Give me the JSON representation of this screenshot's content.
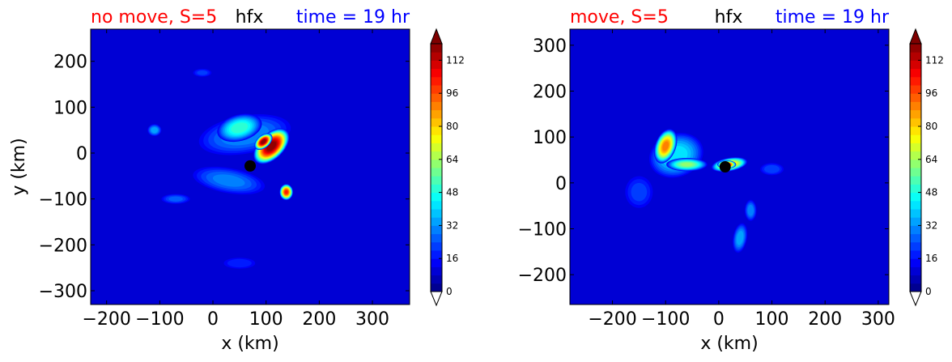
{
  "chart_data": [
    {
      "type": "heatmap",
      "title_left": "no move, S=5",
      "title_center": "hfx",
      "title_right": "time = 19 hr",
      "xlabel": "x (km)",
      "ylabel": "y (km)",
      "xlim": [
        -230,
        370
      ],
      "ylim": [
        -330,
        270
      ],
      "xticks": [
        -200,
        -100,
        0,
        100,
        200,
        300
      ],
      "yticks": [
        -300,
        -200,
        -100,
        0,
        100,
        200
      ],
      "marker": {
        "x": 70,
        "y": -28
      },
      "colorbar": {
        "min": 0,
        "max": 120,
        "step": 4,
        "ticks": [
          0,
          16,
          32,
          48,
          64,
          80,
          96,
          112
        ],
        "extend": "both"
      },
      "background_level": 8,
      "features": [
        {
          "x": 0,
          "y": -40,
          "rx": 260,
          "ry": 240,
          "rot": 0,
          "peak": 10
        },
        {
          "x": 60,
          "y": 40,
          "rx": 95,
          "ry": 45,
          "rot": -10,
          "peak": 30
        },
        {
          "x": 50,
          "y": 55,
          "rx": 45,
          "ry": 30,
          "rot": -15,
          "peak": 50
        },
        {
          "x": 110,
          "y": 15,
          "rx": 42,
          "ry": 28,
          "rot": -45,
          "peak": 120
        },
        {
          "x": 95,
          "y": 25,
          "rx": 20,
          "ry": 14,
          "rot": -40,
          "peak": 120
        },
        {
          "x": 138,
          "y": -85,
          "rx": 13,
          "ry": 18,
          "rot": 0,
          "peak": 100
        },
        {
          "x": 30,
          "y": -60,
          "rx": 75,
          "ry": 30,
          "rot": 10,
          "peak": 28
        },
        {
          "x": -110,
          "y": 50,
          "rx": 14,
          "ry": 14,
          "rot": 0,
          "peak": 34
        },
        {
          "x": -20,
          "y": 175,
          "rx": 20,
          "ry": 10,
          "rot": 0,
          "peak": 20
        },
        {
          "x": -70,
          "y": -100,
          "rx": 30,
          "ry": 12,
          "rot": 0,
          "peak": 24
        },
        {
          "x": 50,
          "y": -240,
          "rx": 35,
          "ry": 14,
          "rot": 0,
          "peak": 18
        }
      ]
    },
    {
      "type": "heatmap",
      "title_left": "move, S=5",
      "title_center": "hfx",
      "title_right": "time = 19 hr",
      "xlabel": "x (km)",
      "ylabel": "",
      "xlim": [
        -280,
        320
      ],
      "ylim": [
        -265,
        335
      ],
      "xticks": [
        -200,
        -100,
        0,
        100,
        200,
        300
      ],
      "yticks": [
        -200,
        -100,
        0,
        100,
        200,
        300
      ],
      "marker": {
        "x": 12,
        "y": 35
      },
      "colorbar": {
        "min": 0,
        "max": 120,
        "step": 4,
        "ticks": [
          0,
          16,
          32,
          48,
          64,
          80,
          96,
          112
        ],
        "extend": "both"
      },
      "background_level": 8,
      "features": [
        {
          "x": 20,
          "y": 40,
          "rx": 260,
          "ry": 250,
          "rot": 0,
          "peak": 10
        },
        {
          "x": -80,
          "y": 60,
          "rx": 55,
          "ry": 50,
          "rot": -20,
          "peak": 42
        },
        {
          "x": -100,
          "y": 80,
          "rx": 20,
          "ry": 40,
          "rot": 20,
          "peak": 90
        },
        {
          "x": -60,
          "y": 40,
          "rx": 40,
          "ry": 15,
          "rot": 0,
          "peak": 60
        },
        {
          "x": 20,
          "y": 40,
          "rx": 35,
          "ry": 15,
          "rot": -10,
          "peak": 80
        },
        {
          "x": 15,
          "y": 40,
          "rx": 18,
          "ry": 9,
          "rot": 0,
          "peak": 112
        },
        {
          "x": 40,
          "y": -120,
          "rx": 14,
          "ry": 35,
          "rot": 10,
          "peak": 34
        },
        {
          "x": 60,
          "y": -60,
          "rx": 12,
          "ry": 25,
          "rot": 0,
          "peak": 30
        },
        {
          "x": 100,
          "y": 30,
          "rx": 25,
          "ry": 15,
          "rot": 0,
          "peak": 22
        },
        {
          "x": -150,
          "y": -20,
          "rx": 30,
          "ry": 40,
          "rot": 0,
          "peak": 20
        }
      ]
    }
  ],
  "colors": {
    "title_left": "#ff0000",
    "title_center": "#000000",
    "title_right": "#0000ff",
    "marker": "#000000"
  }
}
